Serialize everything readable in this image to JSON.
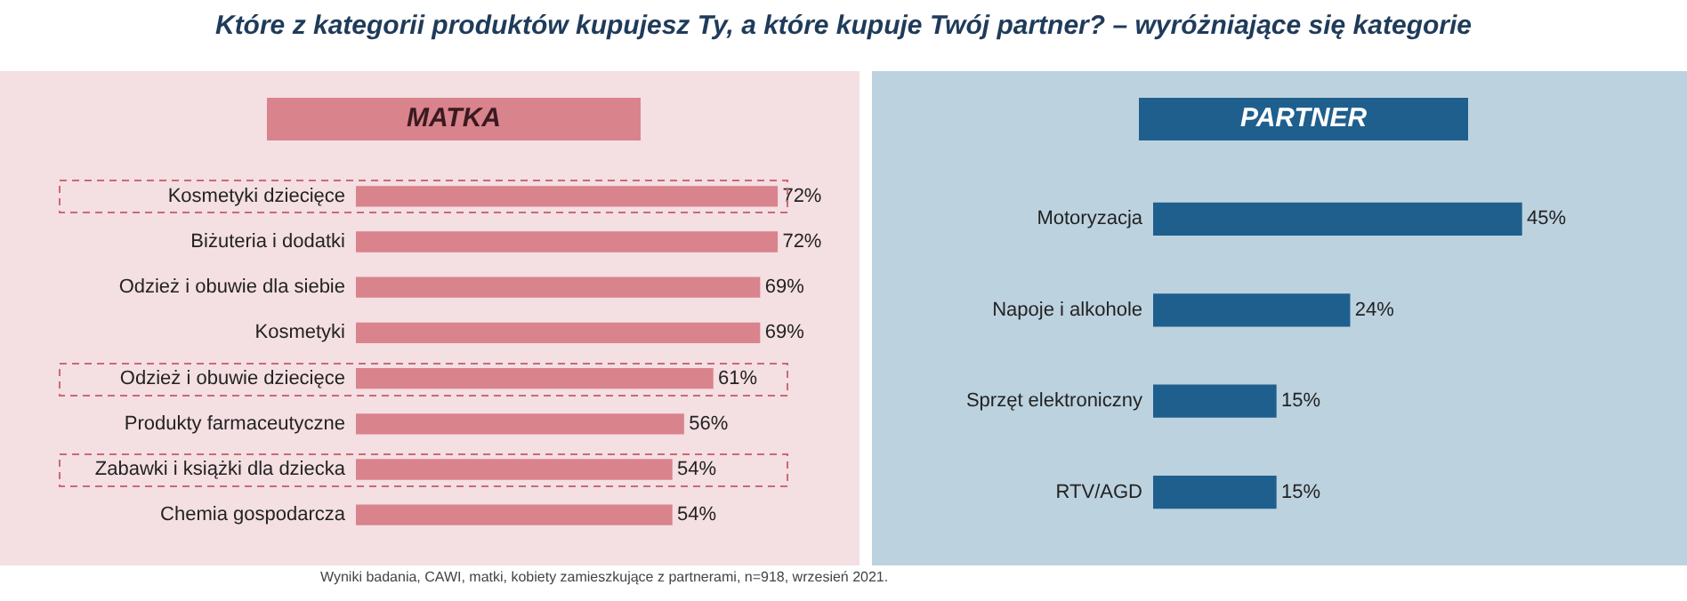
{
  "chart_data": [
    {
      "type": "bar",
      "orientation": "horizontal",
      "title": "MATKA",
      "annotations": [
        "Które z kategorii produktów kupujesz Ty, a które kupuje Twój partner? – wyróżniające się kategorie",
        "Wyniki badania, CAWI, matki, kobiety zamieszkujące z partnerami, n=918, wrzesień 2021."
      ],
      "categories": [
        "Kosmetyki dziecięce",
        "Biżuteria i dodatki",
        "Odzież i obuwie dla siebie",
        "Kosmetyki",
        "Odzież i obuwie dziecięce",
        "Produkty farmaceutyczne",
        "Zabawki i książki dla dziecka",
        "Chemia gospodarcza"
      ],
      "values": [
        72,
        72,
        69,
        69,
        61,
        56,
        54,
        54
      ],
      "value_labels": [
        "72%",
        "72%",
        "69%",
        "69%",
        "61%",
        "56%",
        "54%",
        "54%"
      ],
      "color": "#d9838c",
      "tick_labels": "y",
      "grid": false,
      "legend": false
    },
    {
      "type": "bar",
      "orientation": "horizontal",
      "title": "PARTNER",
      "categories": [
        "Motoryzacja",
        "Napoje i alkohole",
        "Sprzęt elektroniczny",
        "RTV/AGD"
      ],
      "values": [
        45,
        24,
        15,
        15
      ],
      "value_labels": [
        "45%",
        "24%",
        "15%",
        "15%"
      ],
      "color": "#1f5f8e",
      "tick_labels": "y",
      "grid": false,
      "legend": false
    }
  ]
}
